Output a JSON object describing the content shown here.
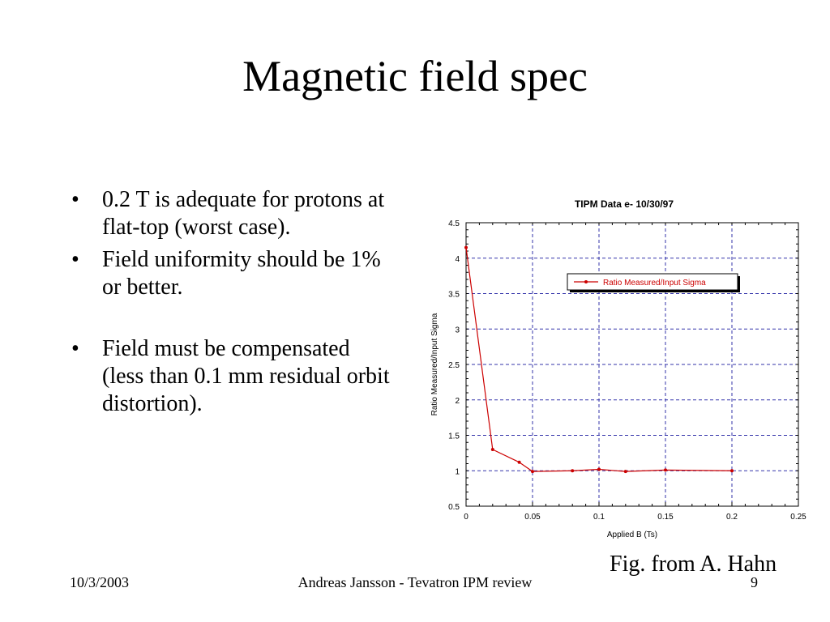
{
  "slide": {
    "title": "Magnetic field spec",
    "bullets": [
      "0.2 T is adequate for protons at flat-top (worst case).",
      "Field uniformity should be 1% or better.",
      "Field must be compensated (less than 0.1 mm residual orbit distortion)."
    ],
    "bullet_symbol": "•",
    "caption": "Fig. from A. Hahn",
    "footer": {
      "date": "10/3/2003",
      "center": "Andreas Jansson - Tevatron IPM review",
      "page": "9"
    }
  },
  "chart_data": {
    "type": "line",
    "title": "TIPM Data e- 10/30/97",
    "xlabel": "Applied B (Ts)",
    "ylabel": "Ratio Measured/Input Sigma",
    "xlim": [
      0,
      0.25
    ],
    "ylim": [
      0.5,
      4.5
    ],
    "x_ticks": [
      "0",
      "0.05",
      "0.1",
      "0.15",
      "0.2",
      "0.25"
    ],
    "y_ticks": [
      "0.5",
      "1",
      "1.5",
      "2",
      "2.5",
      "3",
      "3.5",
      "4",
      "4.5"
    ],
    "grid": true,
    "legend_position": "top-right",
    "series": [
      {
        "name": "Ratio Measured/Input Sigma",
        "color": "#cc0000",
        "x": [
          0,
          0.02,
          0.04,
          0.05,
          0.08,
          0.1,
          0.12,
          0.15,
          0.2
        ],
        "y": [
          4.15,
          1.3,
          1.12,
          0.99,
          1.0,
          1.02,
          0.99,
          1.01,
          1.0
        ]
      }
    ]
  }
}
